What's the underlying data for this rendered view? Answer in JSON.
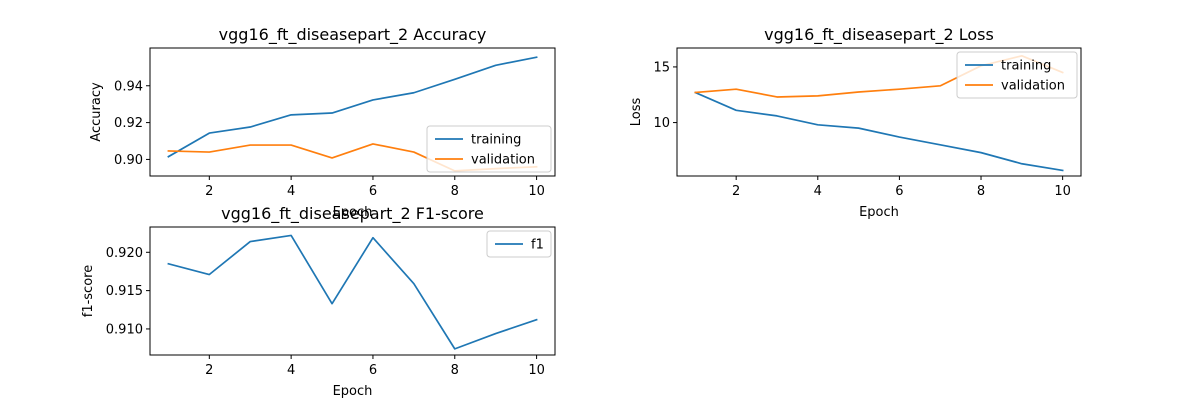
{
  "colors": {
    "training": "#1f77b4",
    "validation": "#ff7f0e",
    "f1": "#1f77b4"
  },
  "chart_data": [
    {
      "type": "line",
      "title": "vgg16_ft_diseasepart_2 Accuracy",
      "xlabel": "Epoch",
      "ylabel": "Accuracy",
      "x": [
        1,
        2,
        3,
        4,
        5,
        6,
        7,
        8,
        9,
        10
      ],
      "xlim": [
        0.55,
        10.45
      ],
      "ylim": [
        0.891,
        0.9605
      ],
      "xticks": [
        2,
        4,
        6,
        8,
        10
      ],
      "yticks": [
        0.9,
        0.92,
        0.94
      ],
      "ytick_labels": [
        "0.90",
        "0.92",
        "0.94"
      ],
      "legend_position": "lower-right",
      "series": [
        {
          "name": "training",
          "values": [
            0.9015,
            0.9143,
            0.9176,
            0.9242,
            0.9252,
            0.9323,
            0.9362,
            0.9435,
            0.9511,
            0.9555
          ]
        },
        {
          "name": "validation",
          "values": [
            0.9046,
            0.904,
            0.9078,
            0.9078,
            0.9008,
            0.9084,
            0.904,
            0.8938,
            0.895,
            0.896
          ]
        }
      ]
    },
    {
      "type": "line",
      "title": "vgg16_ft_diseasepart_2 Loss",
      "xlabel": "Epoch",
      "ylabel": "Loss",
      "x": [
        1,
        2,
        3,
        4,
        5,
        6,
        7,
        8,
        9,
        10
      ],
      "xlim": [
        0.55,
        10.45
      ],
      "ylim": [
        5.2,
        16.7
      ],
      "xticks": [
        2,
        4,
        6,
        8,
        10
      ],
      "yticks": [
        10,
        15
      ],
      "ytick_labels": [
        "10",
        "15"
      ],
      "legend_position": "upper-right",
      "series": [
        {
          "name": "training",
          "values": [
            12.7,
            11.1,
            10.6,
            9.8,
            9.5,
            8.7,
            8.0,
            7.3,
            6.3,
            5.7
          ]
        },
        {
          "name": "validation",
          "values": [
            12.7,
            13.0,
            12.3,
            12.4,
            12.75,
            13.0,
            13.3,
            15.1,
            16.0,
            14.5
          ]
        }
      ]
    },
    {
      "type": "line",
      "title": "vgg16_ft_diseasepart_2 F1-score",
      "xlabel": "Epoch",
      "ylabel": "f1-score",
      "x": [
        1,
        2,
        3,
        4,
        5,
        6,
        7,
        8,
        9,
        10
      ],
      "xlim": [
        0.55,
        10.45
      ],
      "ylim": [
        0.9066,
        0.9233
      ],
      "xticks": [
        2,
        4,
        6,
        8,
        10
      ],
      "yticks": [
        0.91,
        0.915,
        0.92
      ],
      "ytick_labels": [
        "0.910",
        "0.915",
        "0.920"
      ],
      "legend_position": "upper-right",
      "series": [
        {
          "name": "f1",
          "values": [
            0.9185,
            0.9171,
            0.9214,
            0.9222,
            0.9133,
            0.9219,
            0.9159,
            0.9074,
            0.9094,
            0.9112
          ]
        }
      ]
    }
  ]
}
